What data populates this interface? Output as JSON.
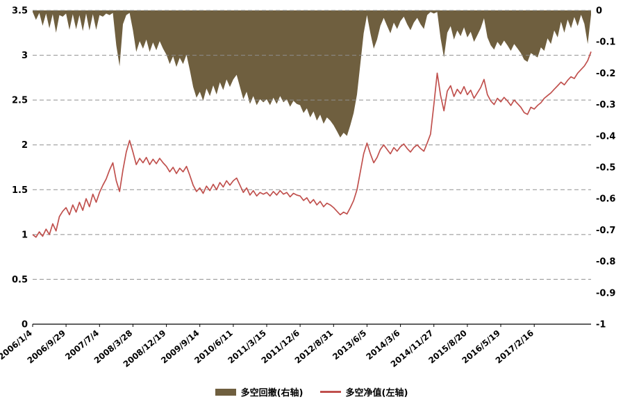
{
  "chart_data": {
    "type": "line",
    "title": "",
    "grid": "horizontal-dashed",
    "legend_position": "bottom",
    "x_axis": {
      "tick_labels": [
        "2006/1/4",
        "2006/9/29",
        "2007/7/4",
        "2008/3/28",
        "2008/12/19",
        "2009/9/14",
        "2010/6/11",
        "2011/3/15",
        "2011/12/6",
        "2012/8/31",
        "2013/6/5",
        "2014/3/6",
        "2014/11/27",
        "2015/8/20",
        "2016/5/19",
        "2017/2/16"
      ],
      "tick_unit_spacing": 1,
      "total_units": 16.7,
      "point_step": 0.1
    },
    "left_axis": {
      "min": 0,
      "max": 3.5,
      "tick_labels": [
        "3.5",
        "3",
        "2.5",
        "2",
        "1.5",
        "1",
        "0.5",
        "0"
      ]
    },
    "right_axis": {
      "min": -1,
      "max": 0,
      "tick_labels": [
        "0",
        "-0.1",
        "-0.2",
        "-0.3",
        "-0.4",
        "-0.5",
        "-0.6",
        "-0.7",
        "-0.8",
        "-0.9",
        "-1"
      ]
    },
    "series": [
      {
        "name": "多空回撤(右轴)",
        "type": "area",
        "axis": "right",
        "color": "#6f5f3f",
        "values": [
          -0.005,
          -0.03,
          -0.008,
          -0.049,
          -0.01,
          -0.057,
          -0.012,
          -0.071,
          -0.015,
          -0.02,
          -0.01,
          -0.062,
          -0.012,
          -0.06,
          -0.015,
          -0.066,
          -0.01,
          -0.064,
          -0.012,
          -0.062,
          -0.015,
          -0.02,
          -0.01,
          -0.015,
          -0.008,
          -0.111,
          -0.178,
          -0.044,
          -0.015,
          -0.008,
          -0.063,
          -0.132,
          -0.098,
          -0.122,
          -0.093,
          -0.132,
          -0.102,
          -0.127,
          -0.098,
          -0.122,
          -0.141,
          -0.171,
          -0.146,
          -0.18,
          -0.151,
          -0.171,
          -0.141,
          -0.19,
          -0.244,
          -0.278,
          -0.259,
          -0.288,
          -0.249,
          -0.273,
          -0.239,
          -0.268,
          -0.229,
          -0.254,
          -0.22,
          -0.244,
          -0.22,
          -0.205,
          -0.244,
          -0.283,
          -0.259,
          -0.298,
          -0.273,
          -0.302,
          -0.283,
          -0.293,
          -0.283,
          -0.302,
          -0.278,
          -0.298,
          -0.273,
          -0.293,
          -0.283,
          -0.307,
          -0.288,
          -0.298,
          -0.302,
          -0.327,
          -0.312,
          -0.341,
          -0.322,
          -0.351,
          -0.332,
          -0.361,
          -0.341,
          -0.351,
          -0.366,
          -0.385,
          -0.405,
          -0.39,
          -0.4,
          -0.366,
          -0.327,
          -0.268,
          -0.171,
          -0.073,
          -0.015,
          -0.073,
          -0.122,
          -0.093,
          -0.049,
          -0.024,
          -0.049,
          -0.073,
          -0.039,
          -0.059,
          -0.034,
          -0.02,
          -0.044,
          -0.063,
          -0.039,
          -0.024,
          -0.044,
          -0.059,
          -0.015,
          -0.005,
          -0.01,
          -0.005,
          -0.089,
          -0.15,
          -0.071,
          -0.05,
          -0.093,
          -0.064,
          -0.082,
          -0.054,
          -0.086,
          -0.068,
          -0.1,
          -0.079,
          -0.057,
          -0.025,
          -0.086,
          -0.111,
          -0.125,
          -0.1,
          -0.114,
          -0.096,
          -0.111,
          -0.129,
          -0.107,
          -0.121,
          -0.136,
          -0.157,
          -0.164,
          -0.136,
          -0.143,
          -0.15,
          -0.118,
          -0.129,
          -0.089,
          -0.107,
          -0.064,
          -0.086,
          -0.036,
          -0.071,
          -0.029,
          -0.057,
          -0.021,
          -0.05,
          -0.014,
          -0.043,
          -0.107,
          -0.014
        ]
      },
      {
        "name": "多空净值(左轴)",
        "type": "line",
        "axis": "left",
        "color": "#c0504d",
        "values": [
          1.0,
          0.97,
          1.03,
          0.98,
          1.06,
          1.0,
          1.12,
          1.04,
          1.2,
          1.26,
          1.3,
          1.22,
          1.33,
          1.25,
          1.36,
          1.27,
          1.4,
          1.31,
          1.45,
          1.36,
          1.47,
          1.55,
          1.62,
          1.72,
          1.8,
          1.6,
          1.48,
          1.72,
          1.92,
          2.05,
          1.92,
          1.78,
          1.85,
          1.8,
          1.86,
          1.78,
          1.84,
          1.79,
          1.85,
          1.8,
          1.76,
          1.7,
          1.75,
          1.68,
          1.74,
          1.7,
          1.76,
          1.66,
          1.55,
          1.48,
          1.52,
          1.46,
          1.54,
          1.49,
          1.56,
          1.5,
          1.58,
          1.53,
          1.6,
          1.55,
          1.6,
          1.63,
          1.55,
          1.47,
          1.52,
          1.44,
          1.49,
          1.43,
          1.47,
          1.45,
          1.47,
          1.43,
          1.48,
          1.44,
          1.49,
          1.45,
          1.47,
          1.42,
          1.46,
          1.44,
          1.43,
          1.38,
          1.41,
          1.35,
          1.39,
          1.33,
          1.37,
          1.31,
          1.35,
          1.33,
          1.3,
          1.26,
          1.22,
          1.25,
          1.23,
          1.3,
          1.38,
          1.5,
          1.7,
          1.9,
          2.02,
          1.9,
          1.8,
          1.86,
          1.95,
          2.0,
          1.95,
          1.9,
          1.97,
          1.93,
          1.98,
          2.01,
          1.96,
          1.92,
          1.97,
          2.0,
          1.96,
          1.93,
          2.02,
          2.12,
          2.45,
          2.8,
          2.55,
          2.38,
          2.6,
          2.66,
          2.54,
          2.62,
          2.57,
          2.65,
          2.56,
          2.61,
          2.52,
          2.58,
          2.64,
          2.73,
          2.56,
          2.49,
          2.45,
          2.52,
          2.48,
          2.53,
          2.49,
          2.44,
          2.5,
          2.46,
          2.42,
          2.36,
          2.34,
          2.42,
          2.4,
          2.44,
          2.47,
          2.52,
          2.55,
          2.58,
          2.62,
          2.66,
          2.7,
          2.67,
          2.72,
          2.76,
          2.74,
          2.8,
          2.84,
          2.88,
          2.94,
          3.04
        ]
      }
    ]
  },
  "colors": {
    "grid": "#8f8f8f",
    "axis": "#000000",
    "background": "#ffffff",
    "text": "#000000"
  }
}
